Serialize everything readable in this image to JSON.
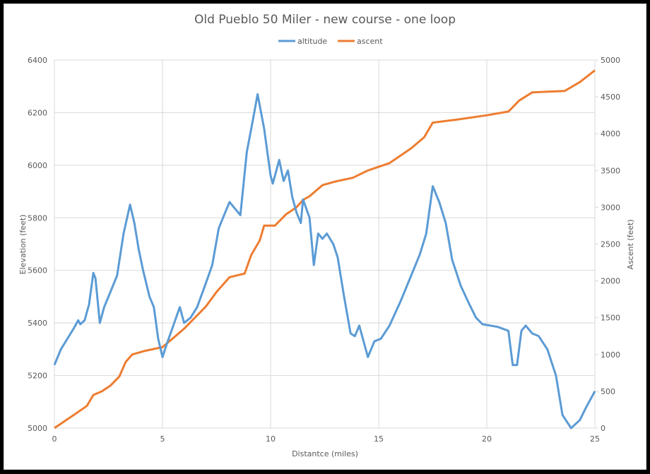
{
  "chart_data": {
    "type": "line",
    "title": "Old Pueblo 50 Miler - new course - one loop",
    "xlabel": "Distantce (miles)",
    "ylabel": "Elevation (feet)",
    "y2label": "Ascent (feet)",
    "xlim": [
      0,
      25
    ],
    "ylim": [
      5000,
      6400
    ],
    "y2lim": [
      0,
      5000
    ],
    "x_ticks": [
      "0",
      "5",
      "10",
      "15",
      "20",
      "25"
    ],
    "y_ticks": [
      "5000",
      "5200",
      "5400",
      "5600",
      "5800",
      "6000",
      "6200",
      "6400"
    ],
    "y2_ticks": [
      "0",
      "500",
      "1000",
      "1500",
      "2000",
      "2500",
      "3000",
      "3500",
      "4000",
      "4500",
      "5000"
    ],
    "grid": true,
    "legend_position": "top",
    "series": [
      {
        "name": "altitude",
        "axis": "left",
        "color": "#5b9bd5",
        "x": [
          0,
          0.3,
          0.6,
          0.9,
          1.1,
          1.2,
          1.4,
          1.6,
          1.8,
          1.9,
          2.1,
          2.3,
          2.6,
          2.9,
          3.2,
          3.5,
          3.7,
          3.9,
          4.1,
          4.4,
          4.6,
          4.8,
          5.0,
          5.2,
          5.5,
          5.8,
          6.0,
          6.3,
          6.6,
          7.0,
          7.3,
          7.6,
          7.9,
          8.1,
          8.3,
          8.6,
          8.9,
          9.2,
          9.4,
          9.7,
          10.0,
          10.1,
          10.4,
          10.6,
          10.8,
          11.0,
          11.2,
          11.4,
          11.5,
          11.8,
          12.0,
          12.2,
          12.4,
          12.6,
          12.9,
          13.1,
          13.4,
          13.7,
          13.9,
          14.1,
          14.5,
          14.8,
          15.1,
          15.5,
          16.0,
          16.5,
          16.9,
          17.2,
          17.5,
          17.8,
          18.1,
          18.4,
          18.8,
          19.2,
          19.5,
          19.8,
          20.5,
          21.0,
          21.2,
          21.4,
          21.6,
          21.8,
          22.1,
          22.4,
          22.8,
          23.2,
          23.5,
          23.9,
          24.3,
          24.6,
          25.0
        ],
        "values": [
          5240,
          5300,
          5340,
          5380,
          5410,
          5395,
          5410,
          5470,
          5590,
          5570,
          5400,
          5460,
          5520,
          5580,
          5740,
          5850,
          5780,
          5680,
          5600,
          5500,
          5460,
          5340,
          5270,
          5320,
          5390,
          5460,
          5400,
          5420,
          5460,
          5550,
          5620,
          5760,
          5820,
          5860,
          5840,
          5810,
          6050,
          6180,
          6270,
          6140,
          5960,
          5930,
          6020,
          5940,
          5980,
          5880,
          5820,
          5780,
          5870,
          5800,
          5620,
          5740,
          5720,
          5740,
          5700,
          5650,
          5500,
          5360,
          5350,
          5390,
          5270,
          5330,
          5340,
          5390,
          5480,
          5580,
          5660,
          5740,
          5920,
          5860,
          5780,
          5640,
          5540,
          5470,
          5420,
          5395,
          5385,
          5370,
          5240,
          5240,
          5370,
          5390,
          5360,
          5350,
          5300,
          5200,
          5050,
          5000,
          5030,
          5080,
          5140
        ]
      },
      {
        "name": "ascent",
        "axis": "right",
        "color": "#ed7d31",
        "x": [
          0,
          0.5,
          1,
          1.5,
          1.8,
          2.2,
          2.6,
          3,
          3.3,
          3.6,
          4.2,
          5,
          5.6,
          6,
          6.5,
          7,
          7.5,
          8.1,
          8.8,
          9.1,
          9.5,
          9.7,
          10.2,
          10.7,
          11.2,
          11.5,
          11.8,
          12.4,
          13,
          13.8,
          14.5,
          15.5,
          16.5,
          17.1,
          17.5,
          18.6,
          20,
          21,
          21.5,
          22.1,
          23.6,
          24.3,
          25
        ],
        "values": [
          0,
          100,
          200,
          300,
          450,
          500,
          580,
          700,
          900,
          1000,
          1050,
          1100,
          1250,
          1350,
          1500,
          1650,
          1850,
          2050,
          2100,
          2350,
          2550,
          2750,
          2750,
          2900,
          3000,
          3100,
          3150,
          3300,
          3350,
          3400,
          3500,
          3600,
          3800,
          3950,
          4150,
          4190,
          4250,
          4300,
          4450,
          4560,
          4580,
          4700,
          4860
        ]
      }
    ]
  },
  "colors": {
    "altitude": "#5b9bd5",
    "ascent": "#ed7d31",
    "grid": "#d9d9d9",
    "text": "#595959"
  }
}
